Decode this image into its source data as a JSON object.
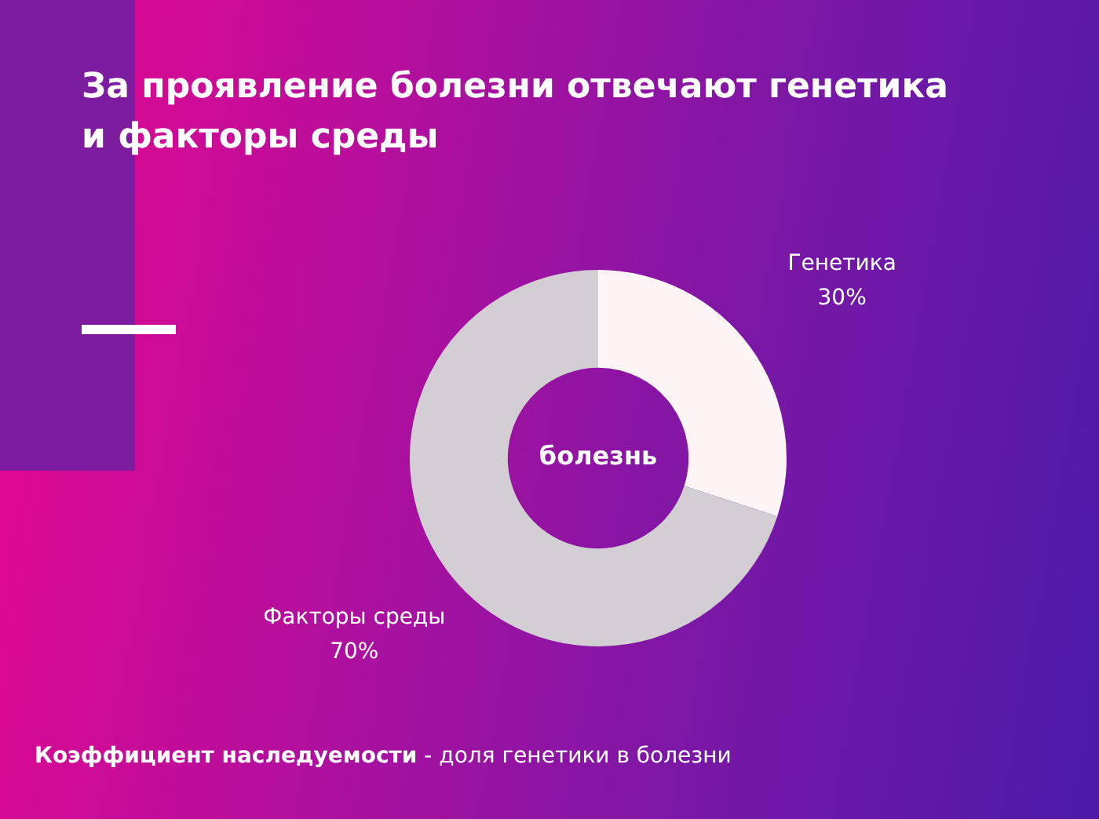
{
  "chart_data": {
    "type": "donut",
    "title": "За проявление болезни отвечают генетика и факторы среды",
    "categories": [
      "Генетика",
      "Факторы среды"
    ],
    "values": [
      30,
      70
    ],
    "colors": [
      "#fdf5f5",
      "#d3ced3"
    ],
    "value_labels": [
      "30%",
      "70%"
    ],
    "legend": false,
    "annotations": [
      "болезнь",
      "Коэффициент наследуемости",
      "- доля генетики в болезни"
    ]
  }
}
